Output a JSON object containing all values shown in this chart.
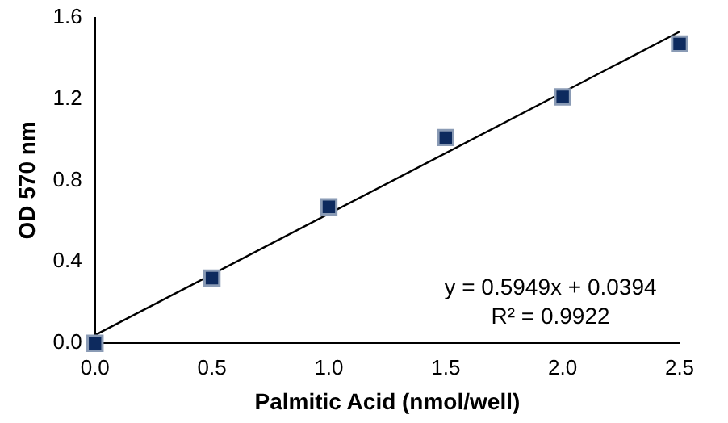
{
  "chart_data": {
    "type": "scatter",
    "xlabel": "Palmitic Acid (nmol/well)",
    "ylabel": "OD 570 nm",
    "x": [
      0,
      0.5,
      1,
      1.5,
      2,
      2.5
    ],
    "xlim": [
      0,
      2.5
    ],
    "xticks": [
      {
        "value": 0,
        "label": "0.0"
      },
      {
        "value": 0.5,
        "label": "0.5"
      },
      {
        "value": 1,
        "label": "1.0"
      },
      {
        "value": 1.5,
        "label": "1.5"
      },
      {
        "value": 2,
        "label": "2.0"
      },
      {
        "value": 2.5,
        "label": "2.5"
      }
    ],
    "ylim": [
      0,
      1.6
    ],
    "yticks": [
      {
        "value": 0,
        "label": "0.0"
      },
      {
        "value": 0.4,
        "label": "0.4"
      },
      {
        "value": 0.8,
        "label": "0.8"
      },
      {
        "value": 1.2,
        "label": "1.2"
      },
      {
        "value": 1.6,
        "label": "1.6"
      }
    ],
    "marker": "square",
    "grid": false,
    "legend": false,
    "series": [
      {
        "color": "#0d2a5e",
        "values": [
          0,
          0.32,
          0.67,
          1.01,
          1.21,
          1.47
        ]
      },
      {
        "type": "line",
        "marker": "none",
        "color": "#000000",
        "x": [
          0,
          2.5
        ],
        "values": [
          0.04,
          1.53
        ]
      }
    ],
    "annotations": [
      "y = 0.5949x + 0.0394",
      "R² = 0.9922"
    ]
  }
}
